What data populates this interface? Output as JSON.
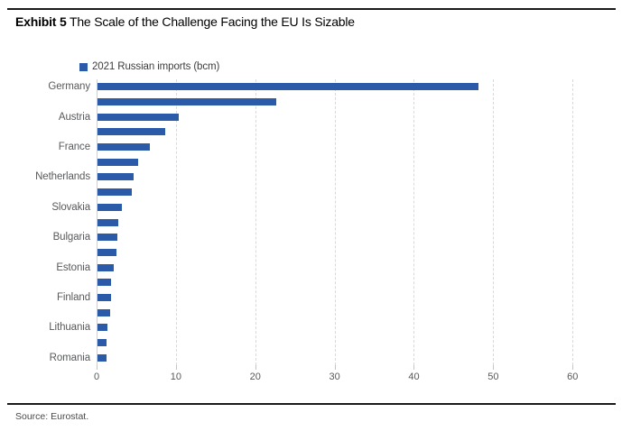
{
  "header": {
    "exhibit_label": "Exhibit 5",
    "title": "The Scale of the Challenge Facing the EU Is Sizable"
  },
  "legend": {
    "label": "2021 Russian imports (bcm)"
  },
  "chart_data": {
    "type": "bar",
    "orientation": "horizontal",
    "series_name": "2021 Russian imports (bcm)",
    "unit": "bcm",
    "categories": [
      "Germany",
      "",
      "Austria",
      "",
      "France",
      "",
      "Netherlands",
      "",
      "Slovakia",
      "",
      "Bulgaria",
      "",
      "Estonia",
      "",
      "Finland",
      "",
      "Lithuania",
      "",
      "Romania"
    ],
    "values": [
      48,
      22.5,
      10.2,
      8.5,
      6.6,
      5.1,
      4.6,
      4.3,
      3.1,
      2.6,
      2.5,
      2.4,
      2.1,
      1.7,
      1.7,
      1.6,
      1.2,
      1.1,
      1.1
    ],
    "x_ticks": [
      0,
      10,
      20,
      30,
      40,
      50,
      60
    ],
    "xlim": [
      0,
      63.5
    ],
    "grid": "vertical-dashed",
    "legend_position": "top-left",
    "bar_color": "#2B5AA8"
  },
  "footer": {
    "source": "Source: Eurostat."
  },
  "colors": {
    "bar": "#2B5AA8",
    "gridline": "#d9d9d9",
    "axis_text": "#58595b",
    "rule": "#1a1a1a"
  }
}
